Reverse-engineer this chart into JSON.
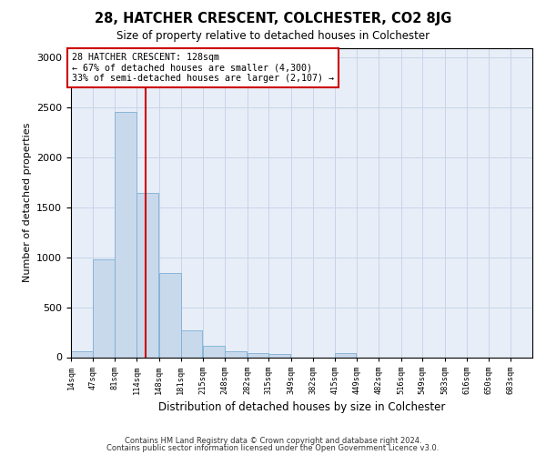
{
  "title": "28, HATCHER CRESCENT, COLCHESTER, CO2 8JG",
  "subtitle": "Size of property relative to detached houses in Colchester",
  "xlabel": "Distribution of detached houses by size in Colchester",
  "ylabel": "Number of detached properties",
  "property_size": 128,
  "annotation_text": "28 HATCHER CRESCENT: 128sqm\n← 67% of detached houses are smaller (4,300)\n33% of semi-detached houses are larger (2,107) →",
  "footer_line1": "Contains HM Land Registry data © Crown copyright and database right 2024.",
  "footer_line2": "Contains public sector information licensed under the Open Government Licence v3.0.",
  "bar_color": "#c9d9ec",
  "bar_edge_color": "#7bafd4",
  "vline_color": "#cc0000",
  "annotation_box_color": "#cc0000",
  "grid_color": "#c8d4e8",
  "background_color": "#e8eef8",
  "bin_edges": [
    14,
    47,
    81,
    114,
    148,
    181,
    215,
    248,
    282,
    315,
    349,
    382,
    415,
    449,
    482,
    516,
    549,
    583,
    616,
    650,
    683,
    716
  ],
  "bin_labels": [
    "14sqm",
    "47sqm",
    "81sqm",
    "114sqm",
    "148sqm",
    "181sqm",
    "215sqm",
    "248sqm",
    "282sqm",
    "315sqm",
    "349sqm",
    "382sqm",
    "415sqm",
    "449sqm",
    "482sqm",
    "516sqm",
    "549sqm",
    "583sqm",
    "616sqm",
    "650sqm",
    "683sqm"
  ],
  "values": [
    60,
    980,
    2460,
    1650,
    840,
    270,
    115,
    60,
    45,
    35,
    0,
    0,
    40,
    0,
    0,
    0,
    0,
    0,
    0,
    0,
    0
  ],
  "ylim": [
    0,
    3100
  ],
  "yticks": [
    0,
    500,
    1000,
    1500,
    2000,
    2500,
    3000
  ]
}
